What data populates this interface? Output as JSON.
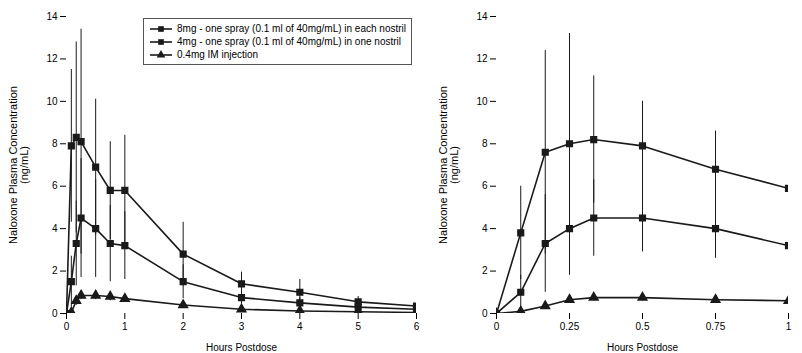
{
  "chart_data": [
    {
      "type": "line",
      "xlabel": "Hours Postdose",
      "ylabel": "Naloxone Plasma Concentration\n(ng/mL)",
      "xlim": [
        0,
        6
      ],
      "xticks": [
        0,
        1,
        2,
        3,
        4,
        5,
        6
      ],
      "ylim": [
        0,
        14
      ],
      "yticks": [
        0,
        2,
        4,
        6,
        8,
        10,
        12,
        14
      ],
      "legend": "upper right",
      "series": [
        {
          "name": "8mg - one spray (0.1 ml of 40mg/mL) in each nostril",
          "marker": "square",
          "color": "#1a1a1a",
          "x": [
            0.0,
            0.083,
            0.167,
            0.25,
            0.5,
            0.75,
            1.0,
            2.0,
            3.0,
            4.0,
            5.0,
            6.0
          ],
          "values": [
            0.0,
            7.9,
            8.3,
            8.1,
            6.9,
            5.8,
            5.8,
            2.8,
            1.4,
            1.0,
            0.55,
            0.35
          ],
          "yerr": [
            0.0,
            3.6,
            4.5,
            5.3,
            3.2,
            2.3,
            2.6,
            1.5,
            0.55,
            0.6,
            0.25,
            0.18
          ]
        },
        {
          "name": "4mg - one spray (0.1 ml of 40mg/mL) in one nostril",
          "marker": "square",
          "color": "#1a1a1a",
          "x": [
            0.0,
            0.083,
            0.167,
            0.25,
            0.5,
            0.75,
            1.0,
            2.0,
            3.0,
            4.0,
            5.0,
            6.0
          ],
          "values": [
            0.0,
            1.5,
            3.3,
            4.5,
            4.0,
            3.3,
            3.2,
            1.5,
            0.75,
            0.5,
            0.3,
            0.2
          ],
          "yerr": [
            0.0,
            1.2,
            2.0,
            2.8,
            2.3,
            1.8,
            1.6,
            0.8,
            0.35,
            0.25,
            0.15,
            0.1
          ]
        },
        {
          "name": "0.4mg IM injection",
          "marker": "triangle",
          "color": "#1a1a1a",
          "x": [
            0.0,
            0.083,
            0.167,
            0.25,
            0.5,
            0.75,
            1.0,
            2.0,
            3.0,
            4.0,
            5.0,
            6.0
          ],
          "values": [
            0.0,
            0.05,
            0.6,
            0.85,
            0.85,
            0.8,
            0.7,
            0.4,
            0.2,
            0.12,
            0.08,
            0.05
          ],
          "yerr": [
            0.0,
            0.05,
            0.22,
            0.2,
            0.2,
            0.2,
            0.15,
            0.1,
            0.05,
            0.04,
            0.03,
            0.02
          ]
        }
      ]
    },
    {
      "type": "line",
      "xlabel": "Hours Postdose",
      "ylabel": "Naloxone Plasma Concentration\n(ng/mL)",
      "xlim": [
        0,
        1.0
      ],
      "xticks": [
        0,
        0.25,
        0.5,
        0.75,
        1
      ],
      "ylim": [
        0,
        14
      ],
      "yticks": [
        0,
        2,
        4,
        6,
        8,
        10,
        12,
        14
      ],
      "series": [
        {
          "marker": "square",
          "color": "#1a1a1a",
          "x": [
            0.0,
            0.083,
            0.167,
            0.25,
            0.333,
            0.5,
            0.75,
            1.0
          ],
          "values": [
            0.0,
            3.8,
            7.6,
            8.0,
            8.2,
            7.9,
            6.8,
            5.9
          ],
          "yerr": [
            0.0,
            2.2,
            4.8,
            5.2,
            3.0,
            2.1,
            1.8,
            1.3
          ]
        },
        {
          "marker": "square",
          "color": "#1a1a1a",
          "x": [
            0.0,
            0.083,
            0.167,
            0.25,
            0.333,
            0.5,
            0.75,
            1.0
          ],
          "values": [
            0.0,
            1.0,
            3.3,
            4.0,
            4.5,
            4.5,
            4.0,
            3.2
          ],
          "yerr": [
            0.0,
            0.8,
            2.3,
            2.2,
            1.8,
            1.6,
            1.4,
            1.1
          ]
        },
        {
          "marker": "triangle",
          "color": "#1a1a1a",
          "x": [
            0.0,
            0.083,
            0.167,
            0.25,
            0.333,
            0.5,
            0.75,
            1.0
          ],
          "values": [
            0.0,
            0.1,
            0.35,
            0.65,
            0.75,
            0.75,
            0.65,
            0.6
          ],
          "yerr": [
            0.0,
            0.1,
            0.15,
            0.15,
            0.15,
            0.15,
            0.1,
            0.1
          ]
        }
      ]
    }
  ]
}
